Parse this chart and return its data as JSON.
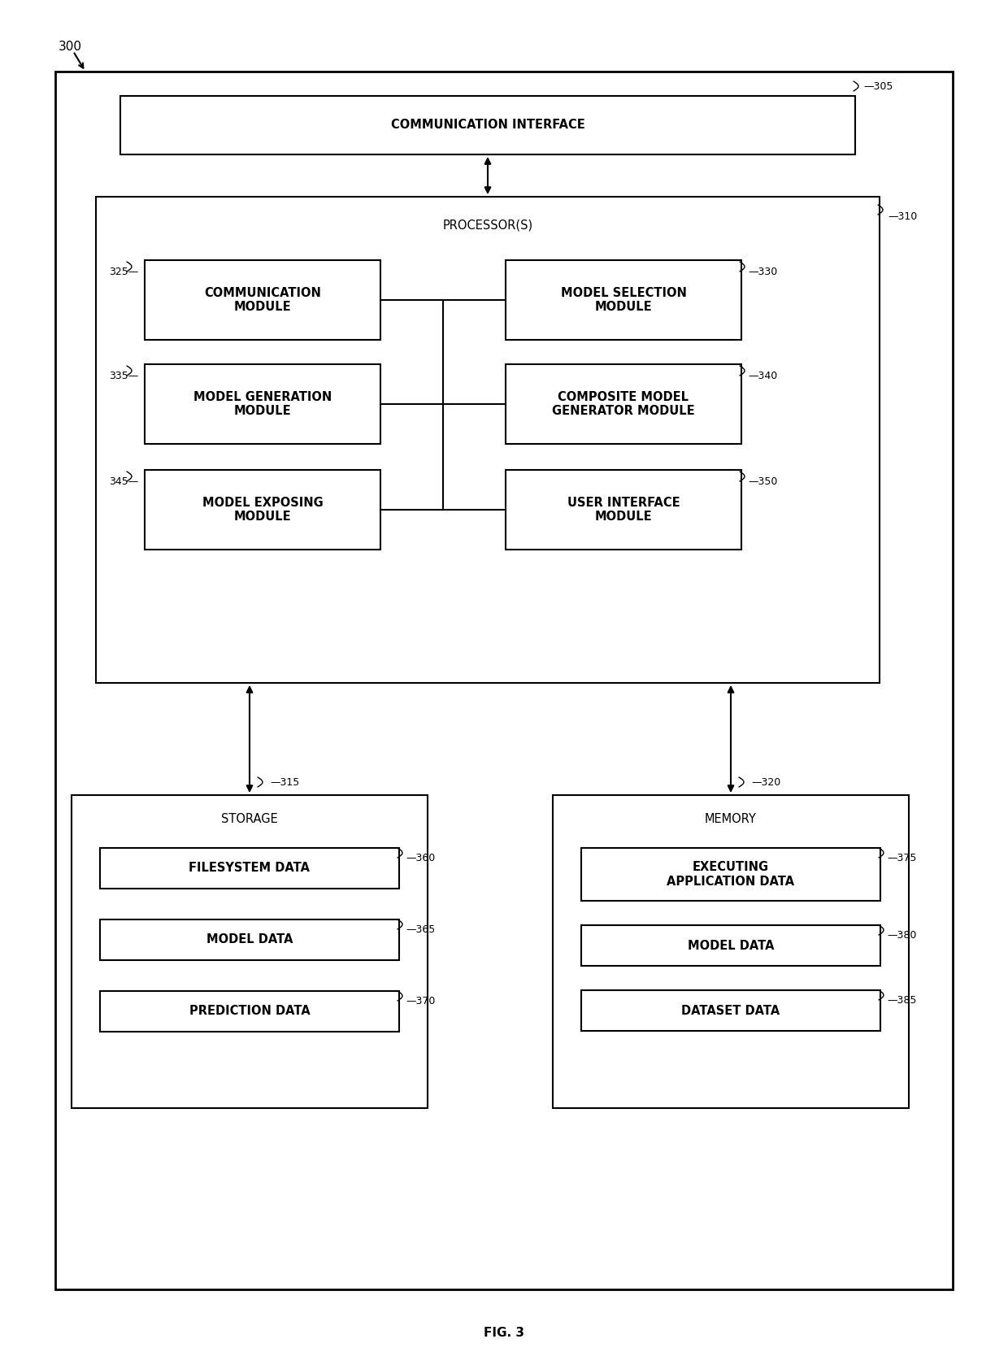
{
  "bg_color": "#ffffff",
  "line_color": "#000000",
  "text_color": "#000000",
  "fig_label": "FIG. 3",
  "ref_300": "300",
  "ref_305": "—305",
  "ref_310": "—310",
  "ref_315": "—315",
  "ref_320": "—320",
  "ref_325": "325—",
  "ref_330": "—330",
  "ref_335": "335—",
  "ref_340": "—340",
  "ref_345": "345—",
  "ref_350": "—350",
  "ref_360": "—360",
  "ref_365": "—365",
  "ref_370": "—370",
  "ref_375": "—375",
  "ref_380": "—380",
  "ref_385": "—385",
  "comm_interface_label": "COMMUNICATION INTERFACE",
  "processor_label": "PROCESSOR(S)",
  "comm_module_label": "COMMUNICATION\nMODULE",
  "model_sel_label": "MODEL SELECTION\nMODULE",
  "model_gen_label": "MODEL GENERATION\nMODULE",
  "composite_label": "COMPOSITE MODEL\nGENERATOR MODULE",
  "model_exp_label": "MODEL EXPOSING\nMODULE",
  "user_iface_label": "USER INTERFACE\nMODULE",
  "storage_label": "STORAGE",
  "memory_label": "MEMORY",
  "filesystem_label": "FILESYSTEM DATA",
  "model_data_storage_label": "MODEL DATA",
  "prediction_label": "PREDICTION DATA",
  "exec_app_label": "EXECUTING\nAPPLICATION DATA",
  "model_data_memory_label": "MODEL DATA",
  "dataset_label": "DATASET DATA",
  "font_size_main": 10.5,
  "font_size_ref": 9,
  "font_size_fig": 11,
  "font_size_300": 11
}
